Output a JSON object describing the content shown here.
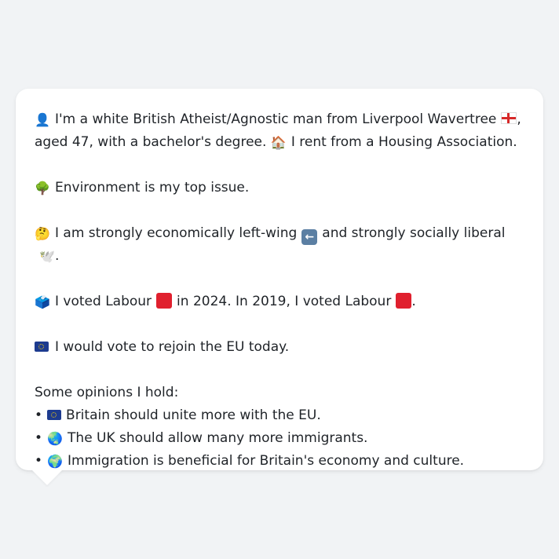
{
  "profile": {
    "line1_before": "I'm a white British Atheist/Agnostic man from Liverpool Wavertree",
    "line1_after": ",",
    "line2_before": "aged 47, with a bachelor's degree.",
    "line2_after": "I rent from a Housing Association.",
    "issue": "Environment is my top issue.",
    "econ_before": "I am strongly economically left-wing",
    "econ_after": "and strongly socially liberal",
    "econ_end": ".",
    "vote_before": "I voted Labour",
    "vote_mid": "in 2024. In 2019, I voted Labour",
    "vote_end": ".",
    "eu": "I would vote to rejoin the EU today.",
    "opinions_heading": "Some opinions I hold:",
    "opinions": [
      "Britain should unite more with the EU.",
      "The UK should allow many more immigrants.",
      "Immigration is beneficial for Britain's economy and culture."
    ],
    "bullet": "•"
  },
  "icons": {
    "person": "👤",
    "house": "🏠",
    "tree": "🌳",
    "thinking": "🤔",
    "dove": "🕊️",
    "ballot": "🗳️",
    "globe_1": "🌏",
    "globe_2": "🌍"
  },
  "colors": {
    "background": "#f1f3f5",
    "card": "#ffffff",
    "text": "#1f2328",
    "labour_red": "#e0202e",
    "eu_blue": "#1d3b8f"
  }
}
